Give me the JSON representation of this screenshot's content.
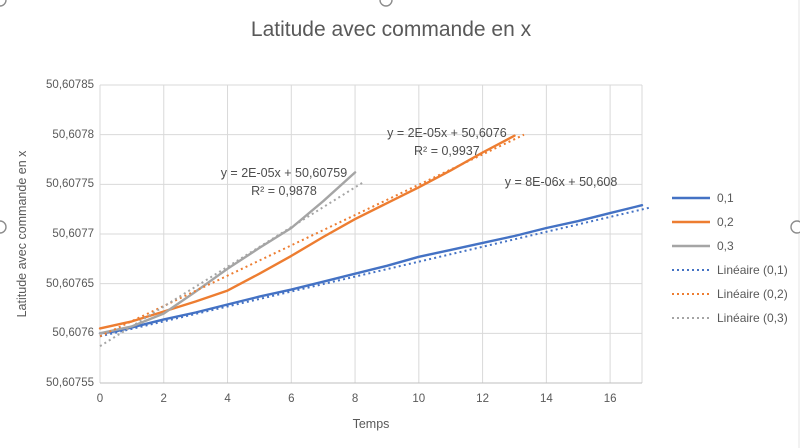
{
  "chart_data": {
    "type": "line",
    "title": "Latitude avec commande en x",
    "xlabel": "Temps",
    "ylabel": "Latitude avec commande en x",
    "xlim": [
      0,
      17
    ],
    "ylim": [
      50.60755,
      50.60785
    ],
    "grid": true,
    "legend_position": "right",
    "x_ticks": {
      "values": [
        0,
        2,
        4,
        6,
        8,
        10,
        12,
        14,
        16
      ],
      "labels": [
        "0",
        "2",
        "4",
        "6",
        "8",
        "10",
        "12",
        "14",
        "16"
      ]
    },
    "y_ticks": {
      "values": [
        50.60755,
        50.6076,
        50.60765,
        50.6077,
        50.60775,
        50.6078,
        50.60785
      ],
      "labels": [
        "50,60755",
        "50,6076",
        "50,60765",
        "50,6077",
        "50,60775",
        "50,6078",
        "50,60785"
      ]
    },
    "series": [
      {
        "name": "0,1",
        "color": "#4472C4",
        "style": "solid",
        "width": 2.4,
        "points": [
          [
            0,
            50.6076
          ],
          [
            0.5,
            50.607602
          ],
          [
            1,
            50.607606
          ],
          [
            1.5,
            50.60761
          ],
          [
            2,
            50.607614
          ],
          [
            3,
            50.607621
          ],
          [
            4,
            50.607629
          ],
          [
            5,
            50.607637
          ],
          [
            6,
            50.607644
          ],
          [
            7,
            50.607652
          ],
          [
            8,
            50.60766
          ],
          [
            9,
            50.607668
          ],
          [
            10,
            50.607677
          ],
          [
            11,
            50.607684
          ],
          [
            12,
            50.607691
          ],
          [
            13,
            50.607698
          ],
          [
            14,
            50.607706
          ],
          [
            15,
            50.607713
          ],
          [
            16,
            50.607721
          ],
          [
            17,
            50.607729
          ]
        ]
      },
      {
        "name": "0,2",
        "color": "#ED7D31",
        "style": "solid",
        "width": 2.4,
        "points": [
          [
            0,
            50.607605
          ],
          [
            1,
            50.607612
          ],
          [
            2,
            50.607622
          ],
          [
            3,
            50.607632
          ],
          [
            4,
            50.607643
          ],
          [
            5,
            50.60766
          ],
          [
            6,
            50.607678
          ],
          [
            7,
            50.607697
          ],
          [
            8,
            50.607715
          ],
          [
            9,
            50.607731
          ],
          [
            10,
            50.607747
          ],
          [
            11,
            50.607764
          ],
          [
            12,
            50.607782
          ],
          [
            13,
            50.607799
          ]
        ]
      },
      {
        "name": "0,3",
        "color": "#A5A5A5",
        "style": "solid",
        "width": 2.4,
        "points": [
          [
            0,
            50.6076
          ],
          [
            1,
            50.607607
          ],
          [
            2,
            50.60762
          ],
          [
            3,
            50.607642
          ],
          [
            4,
            50.607665
          ],
          [
            5,
            50.607686
          ],
          [
            6,
            50.607706
          ],
          [
            7,
            50.607733
          ],
          [
            8,
            50.607762
          ]
        ]
      },
      {
        "name": "Linéaire (0,1)",
        "color": "#4472C4",
        "style": "dotted",
        "width": 2,
        "points": [
          [
            0,
            50.607597
          ],
          [
            17.3,
            50.607727
          ]
        ]
      },
      {
        "name": "Linéaire (0,2)",
        "color": "#ED7D31",
        "style": "dotted",
        "width": 2,
        "points": [
          [
            0,
            50.607597
          ],
          [
            13.3,
            50.6078
          ]
        ]
      },
      {
        "name": "Linéaire (0,3)",
        "color": "#A5A5A5",
        "style": "dotted",
        "width": 2,
        "points": [
          [
            0,
            50.607587
          ],
          [
            8.3,
            50.607753
          ]
        ]
      }
    ],
    "annotations": [
      {
        "series": "0,3",
        "lines": [
          "y = 2E-05x + 50,60759",
          "R² = 0,9878"
        ],
        "x": 5.77,
        "y": 50.607752
      },
      {
        "series": "0,2",
        "lines": [
          "y = 2E-05x + 50,6076",
          "R² = 0,9937"
        ],
        "x": 10.88,
        "y": 50.607793
      },
      {
        "series": "0,1",
        "lines": [
          "y = 8E-06x + 50,608"
        ],
        "x": 14.46,
        "y": 50.607752
      }
    ],
    "legend": [
      {
        "label": "0,1",
        "color": "#4472C4",
        "style": "solid"
      },
      {
        "label": "0,2",
        "color": "#ED7D31",
        "style": "solid"
      },
      {
        "label": "0,3",
        "color": "#A5A5A5",
        "style": "solid"
      },
      {
        "label": "Linéaire (0,1)",
        "color": "#4472C4",
        "style": "dotted"
      },
      {
        "label": "Linéaire (0,2)",
        "color": "#ED7D31",
        "style": "dotted"
      },
      {
        "label": "Linéaire (0,3)",
        "color": "#A5A5A5",
        "style": "dotted"
      }
    ],
    "colors": {
      "grid": "#D9D9D9",
      "axis": "#BFBFBF",
      "tick_text": "#595959",
      "title_text": "#595959",
      "annotation_text": "#4D4D4D",
      "background": "#FFFFFF",
      "handle_stroke": "#8C8C8C",
      "chart_edge": "#E6E6E6"
    }
  },
  "selection_handles": [
    {
      "position": "top-left"
    },
    {
      "position": "top-center"
    },
    {
      "position": "left-middle"
    },
    {
      "position": "right-middle"
    }
  ]
}
